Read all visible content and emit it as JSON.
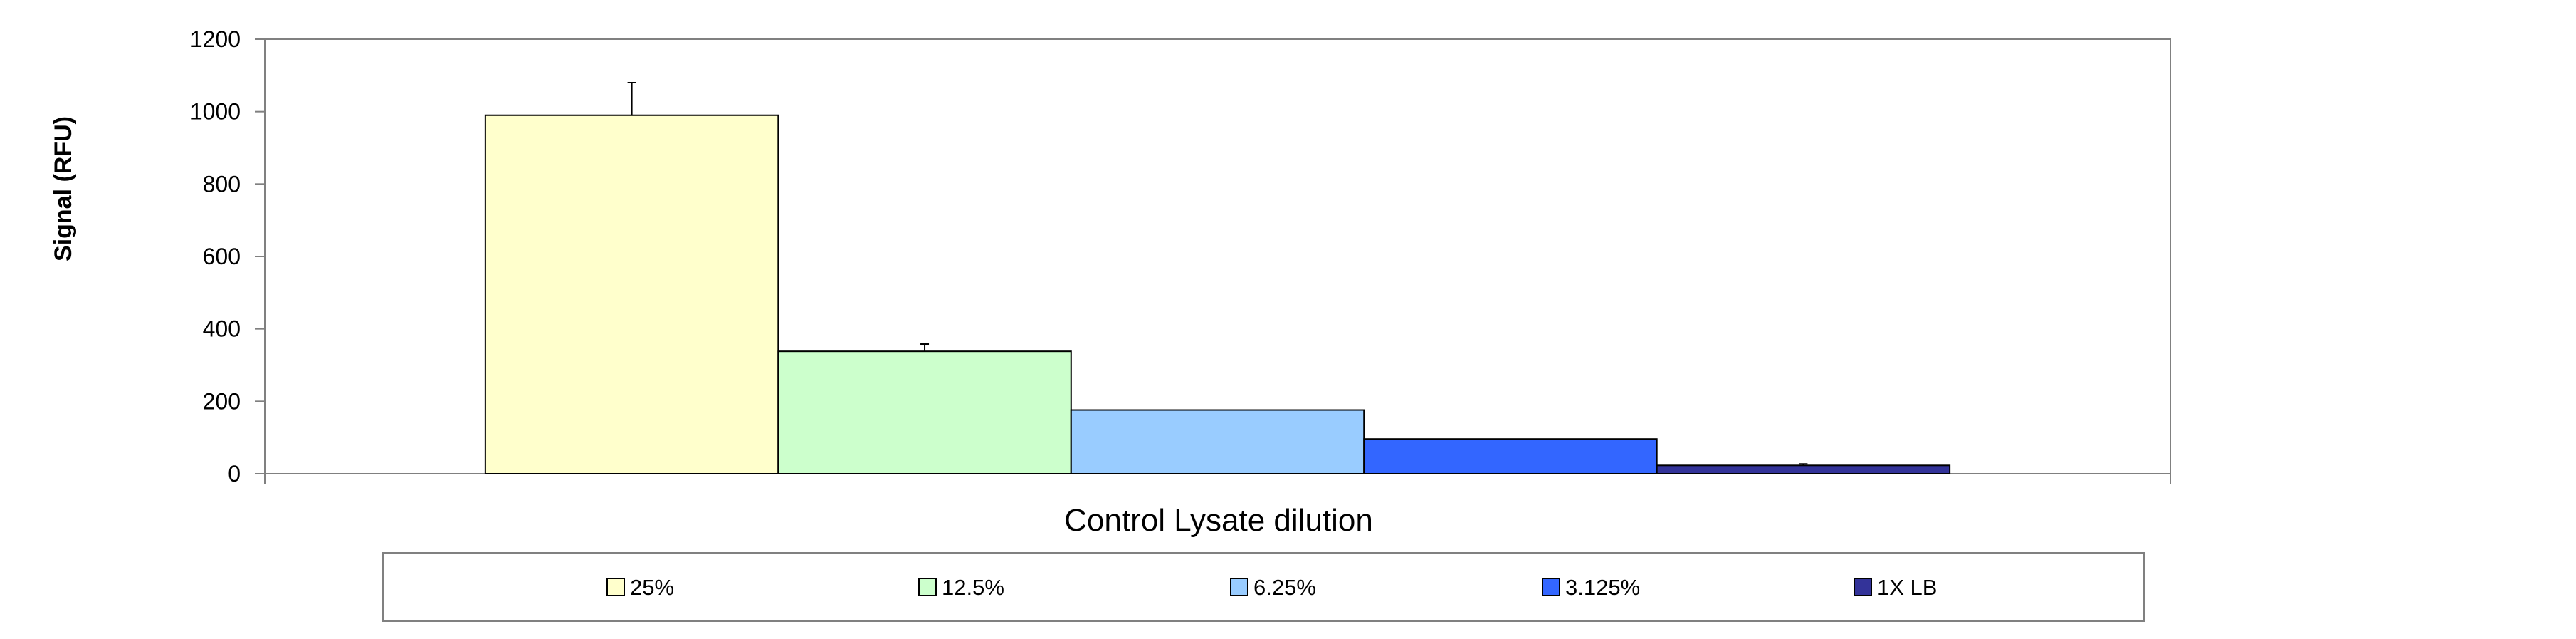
{
  "chart_data": {
    "type": "bar",
    "title": "",
    "xlabel": "Control Lysate dilution",
    "ylabel": "Signal (RFU)",
    "ylim": [
      0,
      1200
    ],
    "yticks": [
      0,
      200,
      400,
      600,
      800,
      1000,
      1200
    ],
    "grid": false,
    "legend_position": "bottom",
    "series": [
      {
        "name": "25%",
        "value": 990,
        "error": 90,
        "color": "#FFFFCC"
      },
      {
        "name": "12.5%",
        "value": 338,
        "error": 20,
        "color": "#CCFFCC"
      },
      {
        "name": "6.25%",
        "value": 176,
        "error": 0,
        "color": "#99CCFF"
      },
      {
        "name": "3.125%",
        "value": 96,
        "error": 0,
        "color": "#3366FF"
      },
      {
        "name": "1X LB",
        "value": 23,
        "error": 4,
        "color": "#333399"
      }
    ]
  }
}
